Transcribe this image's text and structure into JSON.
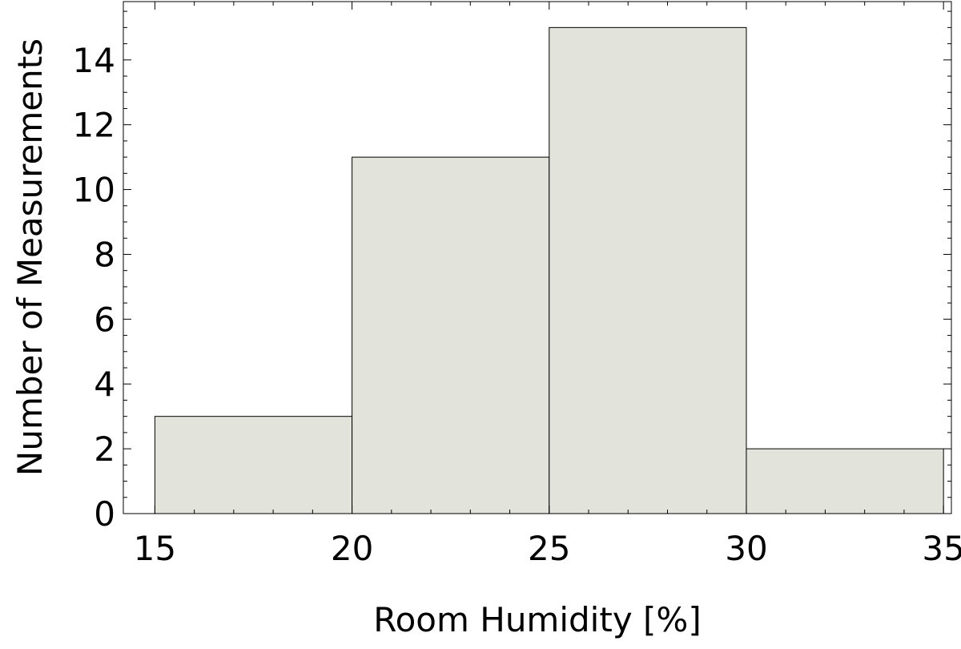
{
  "chart_data": {
    "type": "bar",
    "subtype": "histogram",
    "title": "",
    "xlabel": "Room Humidity [%]",
    "ylabel": "Number of Measurements",
    "bins": [
      {
        "start": 15,
        "end": 20,
        "value": 3
      },
      {
        "start": 20,
        "end": 25,
        "value": 11
      },
      {
        "start": 25,
        "end": 30,
        "value": 15
      },
      {
        "start": 30,
        "end": 35,
        "value": 2
      }
    ],
    "xlim": [
      14.2,
      35.2
    ],
    "ylim": [
      0,
      15.8
    ],
    "x_ticks": [
      15,
      20,
      25,
      30,
      35
    ],
    "y_ticks": [
      0,
      2,
      4,
      6,
      8,
      10,
      12,
      14
    ],
    "x_tick_labels": [
      "15",
      "20",
      "25",
      "30",
      "35"
    ],
    "y_tick_labels": [
      "0",
      "2",
      "4",
      "6",
      "8",
      "10",
      "12",
      "14"
    ],
    "grid": false,
    "legend": "none",
    "bar_color": "#e2e3da",
    "bar_edge_color": "#000000"
  }
}
